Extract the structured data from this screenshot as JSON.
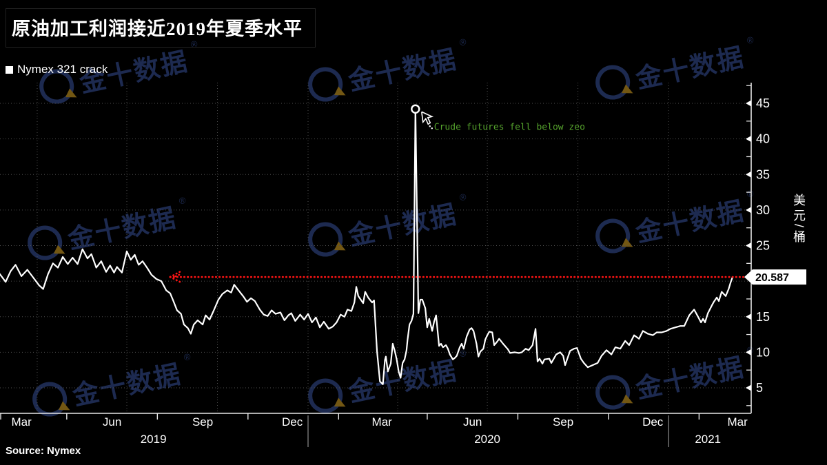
{
  "header": {
    "title": "原油加工利润接近2019年夏季水平"
  },
  "legend": {
    "label": "Nymex 321 crack"
  },
  "footer": {
    "source": "Source: Nymex"
  },
  "watermark": {
    "text": "金十数据",
    "reg": "®"
  },
  "colors": {
    "background": "#000000",
    "line": "#ffffff",
    "reference_line": "#ff1414",
    "annotation_green": "#56a42d",
    "grid": "#4f4f4f",
    "axis": "#e8e8e8",
    "watermark_navy": "#1f2d55",
    "watermark_gold": "#7a5c15",
    "price_box_bg": "#ffffff",
    "price_box_text": "#000000"
  },
  "chart_data": {
    "type": "line",
    "title": "原油加工利润接近2019年夏季水平",
    "ylabel": "美元/桶",
    "ylim": [
      2.4,
      47.9
    ],
    "y_ticks_labeled": [
      45,
      40,
      35,
      30,
      25,
      15,
      10,
      5
    ],
    "y_minor_step": 2.5,
    "grid": "dotted",
    "legend_position": "top-left",
    "x_axis": {
      "month_labels": [
        "Mar",
        "Jun",
        "Sep",
        "Dec",
        "Mar",
        "Jun",
        "Sep",
        "Dec",
        "Mar"
      ],
      "year_labels": [
        "2019",
        "2020",
        "2021"
      ]
    },
    "last_value": 20.587,
    "last_value_label": "20.587",
    "reference_line": {
      "value": 20.587,
      "start": "2019-08-14",
      "style": "dotted",
      "arrow": "left"
    },
    "annotations": [
      {
        "text": "Crude futures fell below zeo",
        "date": "2020-04-19",
        "value": 44.2,
        "marker": "open-circle"
      }
    ],
    "series": [
      {
        "name": "Nymex 321 crack",
        "color": "#ffffff",
        "points": [
          [
            "2019-02-22",
            21.0
          ],
          [
            "2019-02-28",
            19.9
          ],
          [
            "2019-03-05",
            21.4
          ],
          [
            "2019-03-10",
            22.3
          ],
          [
            "2019-03-16",
            20.7
          ],
          [
            "2019-03-22",
            21.6
          ],
          [
            "2019-03-28",
            20.5
          ],
          [
            "2019-04-03",
            19.4
          ],
          [
            "2019-04-07",
            18.9
          ],
          [
            "2019-04-12",
            21.0
          ],
          [
            "2019-04-17",
            22.5
          ],
          [
            "2019-04-22",
            21.9
          ],
          [
            "2019-04-27",
            23.4
          ],
          [
            "2019-05-02",
            22.4
          ],
          [
            "2019-05-07",
            23.3
          ],
          [
            "2019-05-12",
            22.4
          ],
          [
            "2019-05-17",
            24.5
          ],
          [
            "2019-05-22",
            23.2
          ],
          [
            "2019-05-26",
            23.8
          ],
          [
            "2019-05-31",
            21.9
          ],
          [
            "2019-06-05",
            22.8
          ],
          [
            "2019-06-10",
            21.3
          ],
          [
            "2019-06-14",
            22.2
          ],
          [
            "2019-06-18",
            21.2
          ],
          [
            "2019-06-21",
            22.0
          ],
          [
            "2019-06-26",
            21.2
          ],
          [
            "2019-07-01",
            24.2
          ],
          [
            "2019-07-05",
            23.0
          ],
          [
            "2019-07-09",
            23.7
          ],
          [
            "2019-07-13",
            22.3
          ],
          [
            "2019-07-17",
            22.8
          ],
          [
            "2019-07-22",
            21.8
          ],
          [
            "2019-07-26",
            20.9
          ],
          [
            "2019-07-31",
            20.3
          ],
          [
            "2019-08-05",
            20.0
          ],
          [
            "2019-08-10",
            18.7
          ],
          [
            "2019-08-14",
            18.3
          ],
          [
            "2019-08-17",
            17.3
          ],
          [
            "2019-08-21",
            15.9
          ],
          [
            "2019-08-25",
            15.4
          ],
          [
            "2019-08-28",
            13.9
          ],
          [
            "2019-09-01",
            13.4
          ],
          [
            "2019-09-04",
            12.6
          ],
          [
            "2019-09-07",
            13.9
          ],
          [
            "2019-09-11",
            14.5
          ],
          [
            "2019-09-16",
            13.9
          ],
          [
            "2019-09-19",
            15.2
          ],
          [
            "2019-09-23",
            14.6
          ],
          [
            "2019-09-27",
            15.8
          ],
          [
            "2019-10-02",
            17.4
          ],
          [
            "2019-10-06",
            18.2
          ],
          [
            "2019-10-11",
            18.7
          ],
          [
            "2019-10-15",
            18.4
          ],
          [
            "2019-10-18",
            19.5
          ],
          [
            "2019-10-23",
            18.6
          ],
          [
            "2019-10-27",
            17.9
          ],
          [
            "2019-10-31",
            17.1
          ],
          [
            "2019-11-04",
            17.6
          ],
          [
            "2019-11-08",
            17.2
          ],
          [
            "2019-11-13",
            16.0
          ],
          [
            "2019-11-17",
            15.3
          ],
          [
            "2019-11-21",
            15.1
          ],
          [
            "2019-11-25",
            15.9
          ],
          [
            "2019-11-29",
            15.4
          ],
          [
            "2019-12-04",
            15.6
          ],
          [
            "2019-12-08",
            14.5
          ],
          [
            "2019-12-12",
            15.2
          ],
          [
            "2019-12-15",
            15.5
          ],
          [
            "2019-12-19",
            14.4
          ],
          [
            "2019-12-24",
            15.3
          ],
          [
            "2019-12-28",
            14.6
          ],
          [
            "2020-01-01",
            15.4
          ],
          [
            "2020-01-05",
            14.2
          ],
          [
            "2020-01-09",
            14.9
          ],
          [
            "2020-01-13",
            13.5
          ],
          [
            "2020-01-17",
            14.3
          ],
          [
            "2020-01-22",
            13.3
          ],
          [
            "2020-01-26",
            13.6
          ],
          [
            "2020-01-30",
            14.2
          ],
          [
            "2020-02-03",
            15.3
          ],
          [
            "2020-02-07",
            15.0
          ],
          [
            "2020-02-10",
            16.0
          ],
          [
            "2020-02-14",
            15.8
          ],
          [
            "2020-02-17",
            17.0
          ],
          [
            "2020-02-19",
            19.2
          ],
          [
            "2020-02-21",
            17.9
          ],
          [
            "2020-02-26",
            16.9
          ],
          [
            "2020-02-28",
            18.5
          ],
          [
            "2020-03-02",
            17.7
          ],
          [
            "2020-03-06",
            17.0
          ],
          [
            "2020-03-08",
            17.3
          ],
          [
            "2020-03-11",
            10.2
          ],
          [
            "2020-03-14",
            5.9
          ],
          [
            "2020-03-17",
            5.5
          ],
          [
            "2020-03-19",
            8.9
          ],
          [
            "2020-03-20",
            9.4
          ],
          [
            "2020-03-22",
            7.3
          ],
          [
            "2020-03-25",
            8.4
          ],
          [
            "2020-03-27",
            11.2
          ],
          [
            "2020-03-29",
            10.2
          ],
          [
            "2020-03-31",
            9.0
          ],
          [
            "2020-04-02",
            7.3
          ],
          [
            "2020-04-04",
            6.4
          ],
          [
            "2020-04-06",
            8.5
          ],
          [
            "2020-04-08",
            9.0
          ],
          [
            "2020-04-10",
            10.3
          ],
          [
            "2020-04-11",
            11.7
          ],
          [
            "2020-04-13",
            13.9
          ],
          [
            "2020-04-15",
            14.4
          ],
          [
            "2020-04-17",
            15.4
          ],
          [
            "2020-04-19",
            44.2
          ],
          [
            "2020-04-22",
            15.5
          ],
          [
            "2020-04-24",
            17.4
          ],
          [
            "2020-04-26",
            17.4
          ],
          [
            "2020-04-29",
            16.2
          ],
          [
            "2020-05-01",
            13.5
          ],
          [
            "2020-05-03",
            14.7
          ],
          [
            "2020-05-06",
            13.0
          ],
          [
            "2020-05-08",
            14.3
          ],
          [
            "2020-05-10",
            15.2
          ],
          [
            "2020-05-13",
            10.9
          ],
          [
            "2020-05-15",
            11.2
          ],
          [
            "2020-05-17",
            10.7
          ],
          [
            "2020-05-20",
            11.0
          ],
          [
            "2020-05-22",
            10.5
          ],
          [
            "2020-05-24",
            9.7
          ],
          [
            "2020-05-27",
            9.0
          ],
          [
            "2020-05-29",
            9.2
          ],
          [
            "2020-05-31",
            9.5
          ],
          [
            "2020-06-03",
            10.7
          ],
          [
            "2020-06-05",
            11.2
          ],
          [
            "2020-06-07",
            10.5
          ],
          [
            "2020-06-10",
            12.2
          ],
          [
            "2020-06-13",
            13.2
          ],
          [
            "2020-06-15",
            13.4
          ],
          [
            "2020-06-17",
            13.0
          ],
          [
            "2020-06-20",
            11.2
          ],
          [
            "2020-06-22",
            9.4
          ],
          [
            "2020-06-24",
            10.1
          ],
          [
            "2020-06-27",
            10.5
          ],
          [
            "2020-06-29",
            11.8
          ],
          [
            "2020-07-01",
            12.4
          ],
          [
            "2020-07-03",
            12.9
          ],
          [
            "2020-07-06",
            12.8
          ],
          [
            "2020-07-08",
            11.0
          ],
          [
            "2020-07-11",
            11.5
          ],
          [
            "2020-07-13",
            11.9
          ],
          [
            "2020-07-17",
            11.2
          ],
          [
            "2020-07-22",
            10.4
          ],
          [
            "2020-07-24",
            9.9
          ],
          [
            "2020-07-29",
            10.0
          ],
          [
            "2020-08-02",
            9.9
          ],
          [
            "2020-08-05",
            10.0
          ],
          [
            "2020-08-09",
            10.5
          ],
          [
            "2020-08-12",
            10.3
          ],
          [
            "2020-08-16",
            11.0
          ],
          [
            "2020-08-19",
            13.3
          ],
          [
            "2020-08-21",
            8.7
          ],
          [
            "2020-08-23",
            9.1
          ],
          [
            "2020-08-26",
            8.4
          ],
          [
            "2020-08-28",
            9.0
          ],
          [
            "2020-09-02",
            9.1
          ],
          [
            "2020-09-04",
            8.5
          ],
          [
            "2020-09-09",
            9.7
          ],
          [
            "2020-09-13",
            10.0
          ],
          [
            "2020-09-16",
            9.5
          ],
          [
            "2020-09-18",
            8.2
          ],
          [
            "2020-09-23",
            10.2
          ],
          [
            "2020-09-27",
            10.5
          ],
          [
            "2020-09-30",
            10.6
          ],
          [
            "2020-10-04",
            9.1
          ],
          [
            "2020-10-07",
            8.5
          ],
          [
            "2020-10-11",
            7.9
          ],
          [
            "2020-10-16",
            8.2
          ],
          [
            "2020-10-21",
            8.5
          ],
          [
            "2020-10-25",
            9.5
          ],
          [
            "2020-10-30",
            10.3
          ],
          [
            "2020-11-04",
            9.7
          ],
          [
            "2020-11-08",
            10.7
          ],
          [
            "2020-11-13",
            10.5
          ],
          [
            "2020-11-18",
            11.6
          ],
          [
            "2020-11-22",
            11.0
          ],
          [
            "2020-11-27",
            12.4
          ],
          [
            "2020-12-02",
            11.9
          ],
          [
            "2020-12-06",
            13.0
          ],
          [
            "2020-12-11",
            12.6
          ],
          [
            "2020-12-16",
            12.4
          ],
          [
            "2020-12-20",
            12.8
          ],
          [
            "2020-12-25",
            12.8
          ],
          [
            "2020-12-30",
            13.0
          ],
          [
            "2021-01-03",
            13.3
          ],
          [
            "2021-01-08",
            13.5
          ],
          [
            "2021-01-13",
            13.7
          ],
          [
            "2021-01-17",
            13.7
          ],
          [
            "2021-01-22",
            15.2
          ],
          [
            "2021-01-27",
            16.0
          ],
          [
            "2021-01-31",
            15.0
          ],
          [
            "2021-02-03",
            14.2
          ],
          [
            "2021-02-05",
            14.7
          ],
          [
            "2021-02-07",
            14.2
          ],
          [
            "2021-02-10",
            15.5
          ],
          [
            "2021-02-14",
            16.6
          ],
          [
            "2021-02-16",
            17.1
          ],
          [
            "2021-02-19",
            17.7
          ],
          [
            "2021-02-21",
            17.2
          ],
          [
            "2021-02-24",
            18.5
          ],
          [
            "2021-02-28",
            17.9
          ],
          [
            "2021-03-03",
            18.9
          ],
          [
            "2021-03-05",
            19.8
          ],
          [
            "2021-03-07",
            20.587
          ]
        ]
      }
    ]
  }
}
